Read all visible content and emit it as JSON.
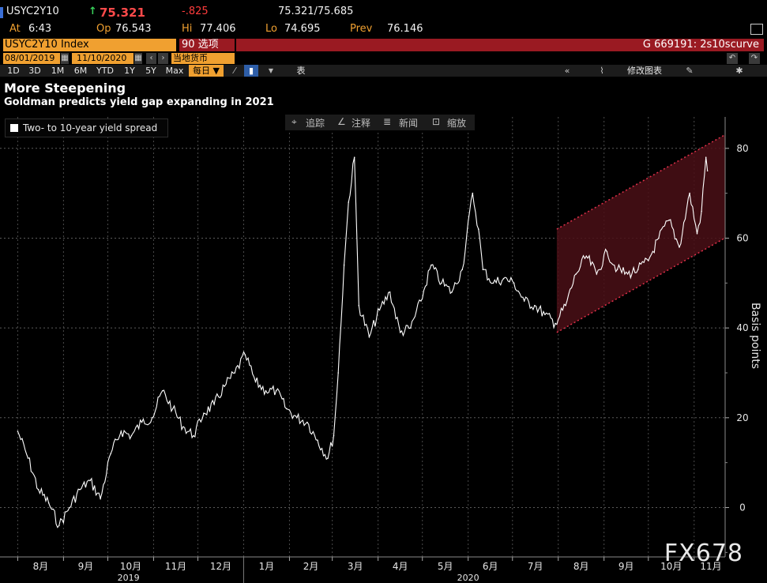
{
  "header": {
    "ticker": "USYC2Y10",
    "arrow": "↑",
    "last": "75.321",
    "change": "-.825",
    "bid_ask": "75.321/75.685",
    "at_label": "At",
    "at_value": "6:43",
    "op_label": "Op",
    "op_value": "76.543",
    "hi_label": "Hi",
    "hi_value": "77.406",
    "lo_label": "Lo",
    "lo_value": "74.695",
    "prev_label": "Prev",
    "prev_value": "76.146",
    "index_name": "USYC2Y10 Index",
    "options_label": "90 选项",
    "curve_label": "G 669191: 2s10scurve",
    "date_from": "08/01/2019",
    "date_to": "11/10/2020",
    "currency": "当地货币"
  },
  "toolbar": {
    "periods": [
      "1D",
      "3D",
      "1M",
      "6M",
      "YTD",
      "1Y",
      "5Y",
      "Max"
    ],
    "frequency": "每日",
    "table_label": "表",
    "edit_label": "修改图表"
  },
  "chart_tools": [
    "追踪",
    "注释",
    "新闻",
    "缩放"
  ],
  "watermark": "FX678",
  "colors": {
    "accent": "#f0a030",
    "header_red": "#9a1a22",
    "channel_line": "#e0304a",
    "channel_fill": "#4a0f16",
    "line": "#ffffff"
  },
  "chart_data": {
    "type": "line",
    "title": "More Steepening",
    "subtitle": "Goldman predicts yield gap expanding in 2021",
    "ylabel": "Basis points",
    "xlabel": "",
    "ylim": [
      -11,
      87
    ],
    "yticks": [
      0,
      20,
      40,
      60,
      80
    ],
    "grid": true,
    "legend_position": "top-left",
    "series": [
      {
        "name": "Two- to 10-year yield spread",
        "x": [
          "2019-08-01",
          "2019-08-08",
          "2019-08-15",
          "2019-08-22",
          "2019-08-29",
          "2019-09-05",
          "2019-09-12",
          "2019-09-19",
          "2019-09-26",
          "2019-10-03",
          "2019-10-10",
          "2019-10-17",
          "2019-10-24",
          "2019-10-31",
          "2019-11-07",
          "2019-11-14",
          "2019-11-21",
          "2019-11-28",
          "2019-12-05",
          "2019-12-12",
          "2019-12-19",
          "2019-12-26",
          "2020-01-02",
          "2020-01-09",
          "2020-01-16",
          "2020-01-23",
          "2020-01-30",
          "2020-02-06",
          "2020-02-13",
          "2020-02-20",
          "2020-02-27",
          "2020-03-02",
          "2020-03-05",
          "2020-03-09",
          "2020-03-12",
          "2020-03-16",
          "2020-03-19",
          "2020-03-26",
          "2020-04-02",
          "2020-04-09",
          "2020-04-16",
          "2020-04-23",
          "2020-04-30",
          "2020-05-07",
          "2020-05-14",
          "2020-05-21",
          "2020-05-28",
          "2020-06-04",
          "2020-06-08",
          "2020-06-11",
          "2020-06-18",
          "2020-06-25",
          "2020-07-02",
          "2020-07-09",
          "2020-07-16",
          "2020-07-23",
          "2020-07-30",
          "2020-08-06",
          "2020-08-13",
          "2020-08-20",
          "2020-08-27",
          "2020-09-03",
          "2020-09-10",
          "2020-09-17",
          "2020-09-24",
          "2020-10-01",
          "2020-10-08",
          "2020-10-15",
          "2020-10-22",
          "2020-10-29",
          "2020-11-03",
          "2020-11-06",
          "2020-11-09",
          "2020-11-10"
        ],
        "values": [
          17,
          11,
          4,
          1,
          -4,
          0,
          4,
          6,
          2,
          12,
          17,
          16,
          19,
          20,
          26,
          22,
          18,
          16,
          21,
          23,
          27,
          30,
          34,
          28,
          26,
          26,
          22,
          20,
          19,
          15,
          11,
          16,
          30,
          54,
          68,
          78,
          45,
          38,
          44,
          48,
          39,
          40,
          46,
          54,
          50,
          48,
          53,
          70,
          62,
          53,
          50,
          51,
          50,
          46,
          45,
          43,
          41,
          45,
          52,
          56,
          52,
          57,
          53,
          52,
          53,
          55,
          60,
          64,
          58,
          70,
          61,
          66,
          78,
          75
        ]
      }
    ],
    "x_tick_labels": [
      "8月",
      "9月",
      "10月",
      "11月",
      "12月",
      "1月",
      "2月",
      "3月",
      "4月",
      "5月",
      "6月",
      "7月",
      "8月",
      "9月",
      "10月",
      "11月"
    ],
    "x_year_labels": [
      "2019",
      "2020"
    ],
    "annotation": {
      "type": "channel",
      "upper": {
        "x": [
          "2020-07-31",
          "2020-11-10"
        ],
        "y": [
          62,
          83
        ]
      },
      "lower": {
        "x": [
          "2020-07-31",
          "2020-11-10"
        ],
        "y": [
          39,
          60
        ]
      }
    }
  }
}
